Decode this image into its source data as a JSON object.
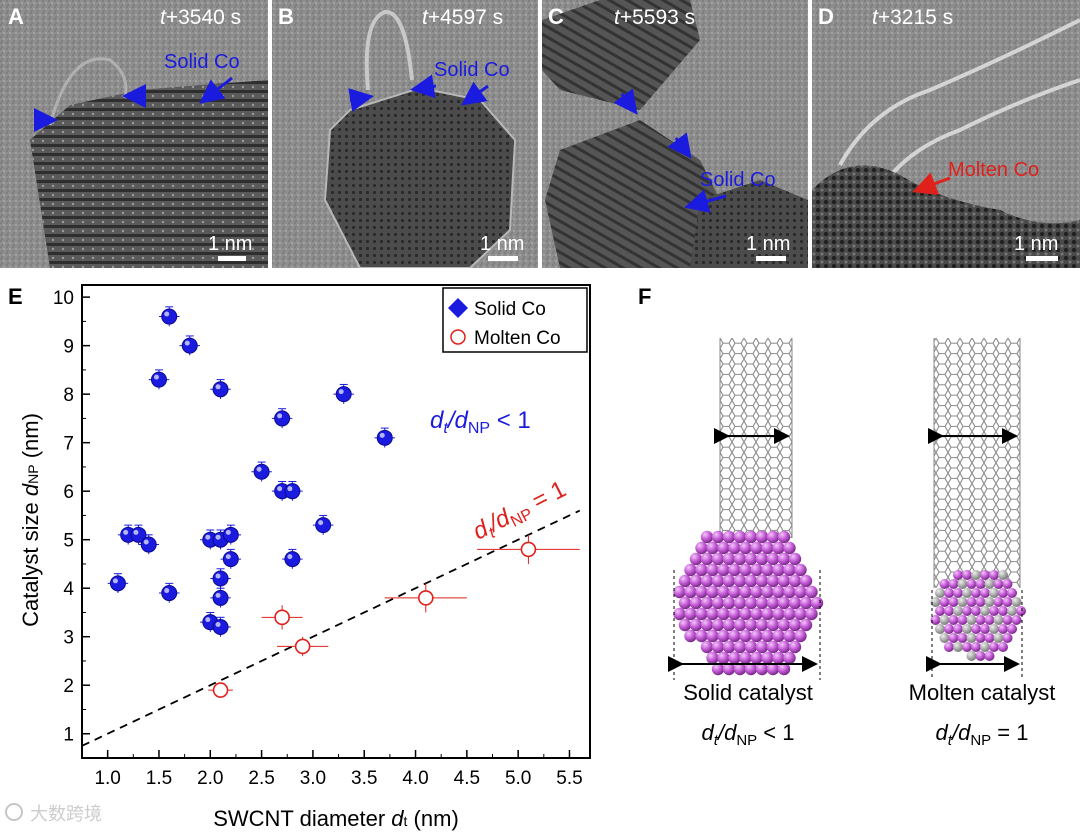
{
  "panels": {
    "a": {
      "letter": "A",
      "time": "t+3540 s",
      "time_prefix": "t",
      "time_rest": "+3540 s",
      "label": "Solid Co",
      "scale": "1 nm"
    },
    "b": {
      "letter": "B",
      "time": "t+4597 s",
      "time_prefix": "t",
      "time_rest": "+4597 s",
      "label": "Solid Co",
      "scale": "1 nm"
    },
    "c": {
      "letter": "C",
      "time": "t+5593 s",
      "time_prefix": "t",
      "time_rest": "+5593 s",
      "label": "Solid Co",
      "scale": "1 nm"
    },
    "d": {
      "letter": "D",
      "time": "t+3215 s",
      "time_prefix": "t",
      "time_rest": "+3215 s",
      "label": "Molten Co",
      "scale": "1 nm"
    }
  },
  "colors": {
    "solid": "#1b1be0",
    "molten": "#e0201b",
    "nanoparticle": "#c05ad0",
    "tube": "#8a8a8a"
  },
  "chart_data": {
    "type": "scatter",
    "panel_letter": "E",
    "xlabel": "SWCNT diameter d",
    "xlabel_main": "SWCNT diameter ",
    "xlabel_var": "d",
    "xlabel_sub": "t",
    "xlabel_unit": " (nm)",
    "ylabel": "Catalyst size dNP (nm)",
    "ylabel_main": "Catalyst size ",
    "ylabel_var": "d",
    "ylabel_sub": "NP",
    "ylabel_unit": " (nm)",
    "xlim": [
      0.75,
      5.7
    ],
    "ylim": [
      0.5,
      10.25
    ],
    "xticks": [
      "1.0",
      "1.5",
      "2.0",
      "2.5",
      "3.0",
      "3.5",
      "4.0",
      "4.5",
      "5.0",
      "5.5"
    ],
    "yticks": [
      "1",
      "2",
      "3",
      "4",
      "5",
      "6",
      "7",
      "8",
      "9",
      "10"
    ],
    "legend_position": "top-right",
    "legend": [
      "Solid Co",
      "Molten Co"
    ],
    "series": [
      {
        "name": "Solid Co",
        "points": [
          {
            "x": 1.1,
            "y": 4.1
          },
          {
            "x": 1.2,
            "y": 5.1
          },
          {
            "x": 1.3,
            "y": 5.1
          },
          {
            "x": 1.4,
            "y": 4.9
          },
          {
            "x": 1.5,
            "y": 8.3
          },
          {
            "x": 1.6,
            "y": 9.6
          },
          {
            "x": 1.6,
            "y": 3.9
          },
          {
            "x": 1.8,
            "y": 9.0
          },
          {
            "x": 2.0,
            "y": 5.0
          },
          {
            "x": 2.0,
            "y": 3.3
          },
          {
            "x": 2.1,
            "y": 8.1
          },
          {
            "x": 2.1,
            "y": 5.0
          },
          {
            "x": 2.1,
            "y": 4.2
          },
          {
            "x": 2.1,
            "y": 3.8
          },
          {
            "x": 2.1,
            "y": 3.2
          },
          {
            "x": 2.2,
            "y": 5.1
          },
          {
            "x": 2.2,
            "y": 4.6
          },
          {
            "x": 2.5,
            "y": 6.4
          },
          {
            "x": 2.7,
            "y": 7.5
          },
          {
            "x": 2.7,
            "y": 6.0
          },
          {
            "x": 2.8,
            "y": 6.0
          },
          {
            "x": 2.8,
            "y": 4.6
          },
          {
            "x": 3.1,
            "y": 5.3
          },
          {
            "x": 3.3,
            "y": 8.0
          },
          {
            "x": 3.7,
            "y": 7.1
          }
        ]
      },
      {
        "name": "Molten Co",
        "points": [
          {
            "x": 2.1,
            "y": 1.9,
            "xerr": 0.12,
            "yerr": 0.1
          },
          {
            "x": 2.7,
            "y": 3.4,
            "xerr": 0.2,
            "yerr": 0.25
          },
          {
            "x": 2.9,
            "y": 2.8,
            "xerr": 0.25,
            "yerr": 0.2
          },
          {
            "x": 4.1,
            "y": 3.8,
            "xerr": 0.4,
            "yerr": 0.3
          },
          {
            "x": 5.1,
            "y": 4.8,
            "xerr": 0.5,
            "yerr": 0.3
          }
        ]
      }
    ],
    "reference_line": {
      "slope": 1.0,
      "intercept": 0.0,
      "style": "dashed"
    },
    "annotations": {
      "ratio_lt": {
        "text": "dt/dNP < 1",
        "var": "d",
        "sub1": "t",
        "mid": "/d",
        "sub2": "NP",
        "tail": " < 1"
      },
      "ratio_eq": {
        "text": "dt/dNP = 1",
        "var": "d",
        "sub1": "t",
        "mid": "/d",
        "sub2": "NP",
        "tail": " = 1"
      }
    }
  },
  "schematic": {
    "panel_letter": "F",
    "solid_label": "Solid catalyst",
    "molten_label": "Molten catalyst",
    "solid_ratio": "dt/dNP < 1",
    "molten_ratio": "dt/dNP = 1",
    "ratio_var": "d",
    "ratio_sub_t": "t",
    "ratio_mid": "/d",
    "ratio_sub_np": "NP",
    "solid_tail": " < 1",
    "molten_tail": " = 1"
  },
  "watermark": {
    "text": "大数跨境"
  }
}
